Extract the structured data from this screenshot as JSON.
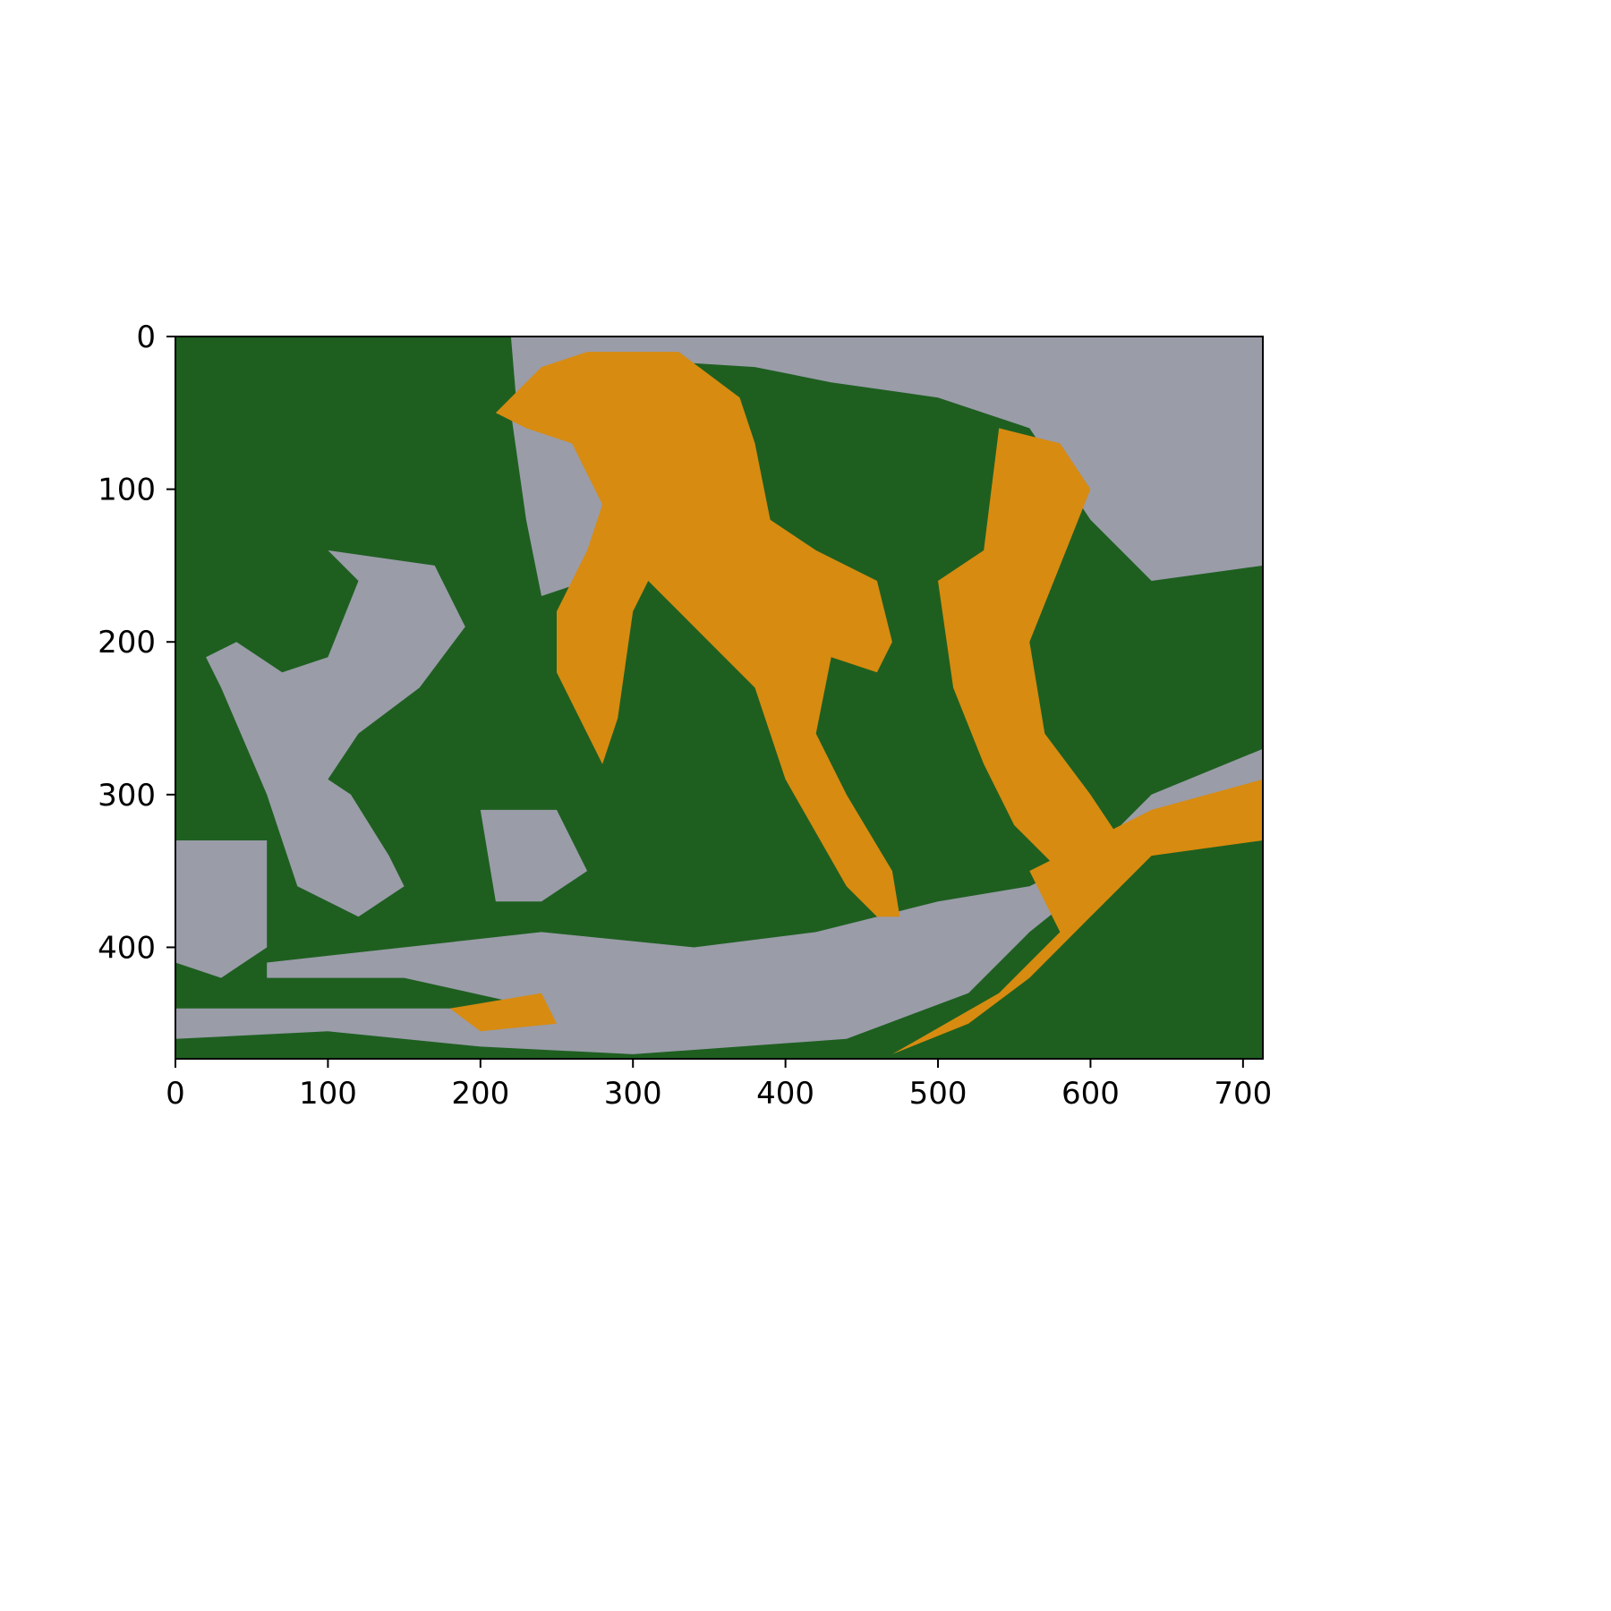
{
  "chart_data": {
    "type": "heatmap",
    "title": "",
    "xlabel": "",
    "ylabel": "",
    "image_width": 713,
    "image_height": 473,
    "xlim": [
      0,
      713
    ],
    "ylim": [
      473,
      0
    ],
    "x_ticks": [
      0,
      100,
      200,
      300,
      400,
      500,
      600,
      700
    ],
    "y_ticks": [
      0,
      100,
      200,
      300,
      400
    ],
    "x_tick_labels": [
      "0",
      "100",
      "200",
      "300",
      "400",
      "500",
      "600",
      "700"
    ],
    "y_tick_labels": [
      "0",
      "100",
      "200",
      "300",
      "400"
    ],
    "grid": false,
    "legend": "none",
    "palette": {
      "background_green": "#1e5f20",
      "gray": "#9a9ca8",
      "orange": "#d78b10"
    },
    "description_regions": {
      "gray": [
        [
          [
            220,
            0
          ],
          [
            713,
            0
          ],
          [
            713,
            150
          ],
          [
            640,
            160
          ],
          [
            600,
            120
          ],
          [
            560,
            60
          ],
          [
            500,
            40
          ],
          [
            430,
            30
          ],
          [
            380,
            20
          ],
          [
            300,
            15
          ],
          [
            260,
            20
          ],
          [
            240,
            40
          ],
          [
            225,
            60
          ],
          [
            220,
            0
          ]
        ],
        [
          [
            100,
            140
          ],
          [
            170,
            150
          ],
          [
            190,
            190
          ],
          [
            160,
            230
          ],
          [
            120,
            260
          ],
          [
            100,
            290
          ],
          [
            115,
            300
          ],
          [
            140,
            340
          ],
          [
            150,
            360
          ],
          [
            120,
            380
          ],
          [
            80,
            360
          ],
          [
            60,
            300
          ],
          [
            30,
            230
          ],
          [
            20,
            210
          ],
          [
            40,
            200
          ],
          [
            70,
            220
          ],
          [
            100,
            210
          ],
          [
            120,
            160
          ]
        ],
        [
          [
            220,
            50
          ],
          [
            265,
            70
          ],
          [
            280,
            110
          ],
          [
            270,
            160
          ],
          [
            240,
            170
          ],
          [
            230,
            120
          ]
        ],
        [
          [
            0,
            330
          ],
          [
            60,
            330
          ],
          [
            60,
            400
          ],
          [
            30,
            420
          ],
          [
            0,
            410
          ]
        ],
        [
          [
            60,
            410
          ],
          [
            240,
            390
          ],
          [
            340,
            400
          ],
          [
            420,
            390
          ],
          [
            500,
            370
          ],
          [
            560,
            360
          ],
          [
            600,
            340
          ],
          [
            640,
            300
          ],
          [
            713,
            270
          ],
          [
            713,
            290
          ],
          [
            650,
            320
          ],
          [
            610,
            350
          ],
          [
            560,
            390
          ],
          [
            520,
            430
          ],
          [
            440,
            460
          ],
          [
            300,
            470
          ],
          [
            200,
            465
          ],
          [
            100,
            455
          ],
          [
            0,
            460
          ],
          [
            0,
            440
          ],
          [
            100,
            440
          ],
          [
            180,
            440
          ],
          [
            240,
            440
          ],
          [
            150,
            420
          ],
          [
            60,
            420
          ]
        ],
        [
          [
            200,
            310
          ],
          [
            250,
            310
          ],
          [
            270,
            350
          ],
          [
            240,
            370
          ],
          [
            210,
            370
          ],
          [
            205,
            340
          ]
        ]
      ],
      "orange": [
        [
          [
            210,
            50
          ],
          [
            240,
            20
          ],
          [
            270,
            10
          ],
          [
            330,
            10
          ],
          [
            370,
            40
          ],
          [
            380,
            70
          ],
          [
            390,
            120
          ],
          [
            420,
            140
          ],
          [
            460,
            160
          ],
          [
            470,
            200
          ],
          [
            460,
            220
          ],
          [
            430,
            210
          ],
          [
            420,
            260
          ],
          [
            440,
            300
          ],
          [
            470,
            350
          ],
          [
            475,
            380
          ],
          [
            460,
            380
          ],
          [
            440,
            360
          ],
          [
            400,
            290
          ],
          [
            380,
            230
          ],
          [
            350,
            200
          ],
          [
            310,
            160
          ],
          [
            300,
            180
          ],
          [
            290,
            250
          ],
          [
            280,
            280
          ],
          [
            250,
            220
          ],
          [
            250,
            180
          ],
          [
            270,
            140
          ],
          [
            280,
            110
          ],
          [
            260,
            70
          ],
          [
            230,
            60
          ]
        ],
        [
          [
            540,
            60
          ],
          [
            580,
            70
          ],
          [
            600,
            100
          ],
          [
            580,
            150
          ],
          [
            560,
            200
          ],
          [
            570,
            260
          ],
          [
            600,
            300
          ],
          [
            620,
            330
          ],
          [
            600,
            350
          ],
          [
            580,
            350
          ],
          [
            550,
            320
          ],
          [
            530,
            280
          ],
          [
            510,
            230
          ],
          [
            500,
            160
          ],
          [
            530,
            140
          ]
        ],
        [
          [
            560,
            350
          ],
          [
            640,
            310
          ],
          [
            713,
            290
          ],
          [
            713,
            330
          ],
          [
            640,
            340
          ],
          [
            600,
            380
          ],
          [
            560,
            420
          ],
          [
            520,
            450
          ],
          [
            470,
            470
          ],
          [
            540,
            430
          ],
          [
            580,
            390
          ]
        ],
        [
          [
            180,
            440
          ],
          [
            240,
            430
          ],
          [
            250,
            450
          ],
          [
            200,
            455
          ]
        ]
      ]
    }
  }
}
